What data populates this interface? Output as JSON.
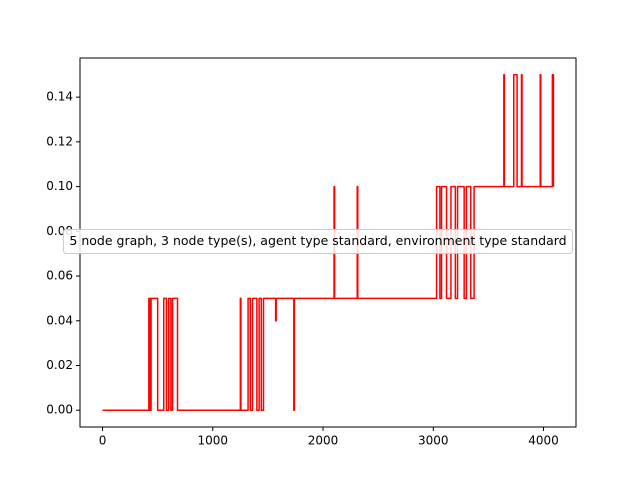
{
  "chart_data": {
    "type": "line",
    "series": [
      {
        "name": "5 node graph, 3 node type(s), agent type standard, environment type standard",
        "color": "#ff0000",
        "x": [
          0,
          420,
          420,
          430,
          430,
          440,
          440,
          500,
          500,
          555,
          555,
          580,
          580,
          600,
          600,
          620,
          620,
          635,
          635,
          680,
          680,
          1250,
          1250,
          1255,
          1255,
          1320,
          1320,
          1340,
          1340,
          1360,
          1360,
          1400,
          1400,
          1420,
          1420,
          1440,
          1440,
          1460,
          1460,
          1570,
          1570,
          1575,
          1575,
          1735,
          1735,
          1740,
          1740,
          2100,
          2100,
          2105,
          2105,
          2310,
          2310,
          2315,
          2315,
          3030,
          3030,
          3060,
          3060,
          3075,
          3075,
          3120,
          3120,
          3160,
          3160,
          3200,
          3200,
          3220,
          3220,
          3280,
          3280,
          3300,
          3300,
          3340,
          3340,
          3370,
          3370,
          3640,
          3640,
          3645,
          3645,
          3730,
          3730,
          3760,
          3760,
          3800,
          3800,
          3805,
          3805,
          3970,
          3970,
          3975,
          3975,
          4080,
          4080,
          4090,
          4090
        ],
        "values": [
          0,
          0,
          0.05,
          0.05,
          0,
          0,
          0.05,
          0.05,
          0,
          0,
          0.05,
          0.05,
          0,
          0,
          0.05,
          0.05,
          0,
          0,
          0.05,
          0.05,
          0,
          0,
          0.05,
          0.05,
          0,
          0,
          0.05,
          0.05,
          0,
          0,
          0.05,
          0.05,
          0,
          0,
          0.05,
          0.05,
          0,
          0,
          0.05,
          0.05,
          0.04,
          0.04,
          0.05,
          0.05,
          0,
          0,
          0.05,
          0.05,
          0.1,
          0.1,
          0.05,
          0.05,
          0.1,
          0.1,
          0.05,
          0.05,
          0.1,
          0.1,
          0.05,
          0.05,
          0.1,
          0.1,
          0.05,
          0.05,
          0.1,
          0.1,
          0.05,
          0.05,
          0.1,
          0.1,
          0.05,
          0.05,
          0.1,
          0.1,
          0.05,
          0.05,
          0.1,
          0.1,
          0.15,
          0.15,
          0.1,
          0.1,
          0.15,
          0.15,
          0.1,
          0.1,
          0.15,
          0.15,
          0.1,
          0.1,
          0.15,
          0.15,
          0.1,
          0.1,
          0.15,
          0.15,
          0.1
        ]
      }
    ],
    "xlim": [
      -204.5,
      4294.5
    ],
    "ylim": [
      -0.0075,
      0.1575
    ],
    "xticks": [
      0,
      1000,
      2000,
      3000,
      4000
    ],
    "yticks": [
      {
        "value": 0,
        "label": "0.00"
      },
      {
        "value": 0.02,
        "label": "0.02"
      },
      {
        "value": 0.04,
        "label": "0.04"
      },
      {
        "value": 0.06,
        "label": "0.06"
      },
      {
        "value": 0.08,
        "label": "0.08"
      },
      {
        "value": 0.1,
        "label": "0.10"
      },
      {
        "value": 0.12,
        "label": "0.12"
      },
      {
        "value": 0.14,
        "label": "0.14"
      }
    ],
    "legend": "center"
  }
}
